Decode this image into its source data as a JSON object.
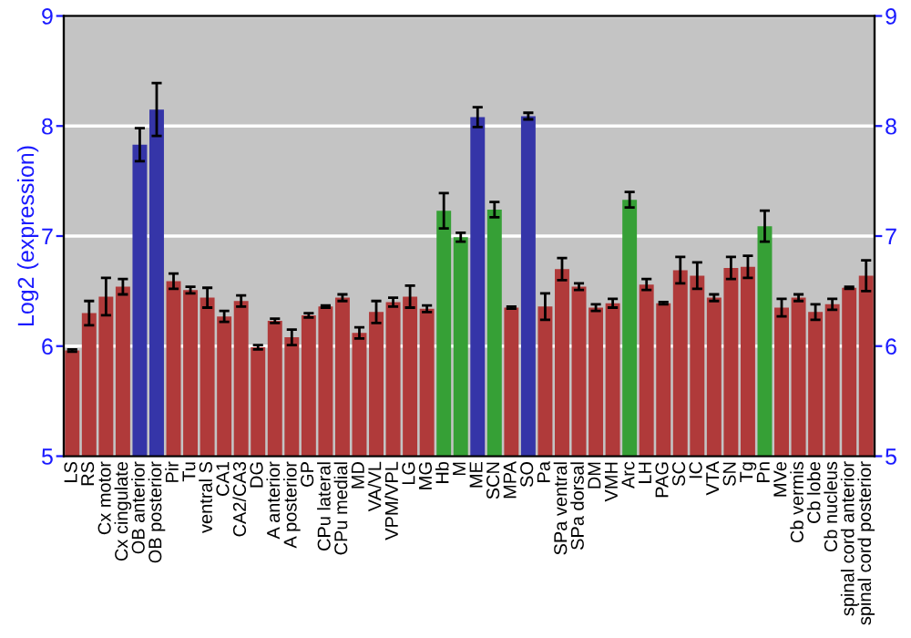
{
  "chart_data": {
    "type": "bar",
    "ylabel": "Log2 (expression)",
    "categories": [
      "LS",
      "RS",
      "Cx motor",
      "Cx cingulate",
      "OB anterior",
      "OB posterior",
      "Pir",
      "Tu",
      "ventral S",
      "CA1",
      "CA2/CA3",
      "DG",
      "A anterior",
      "A posterior",
      "GP",
      "CPu lateral",
      "CPu medial",
      "MD",
      "VA/VL",
      "VPM/VPL",
      "LG",
      "MG",
      "Hb",
      "M",
      "ME",
      "SCN",
      "MPA",
      "SO",
      "Pa",
      "SPa ventral",
      "SPa dorsal",
      "DM",
      "VMH",
      "Arc",
      "LH",
      "PAG",
      "SC",
      "IC",
      "VTA",
      "SN",
      "Tg",
      "Pn",
      "MVe",
      "Cb vermis",
      "Cb lobe",
      "Cb nucleus",
      "spinal cord anterior",
      "spinal cord posterior"
    ],
    "values": [
      5.96,
      6.3,
      6.45,
      6.54,
      7.83,
      8.15,
      6.59,
      6.51,
      6.44,
      6.27,
      6.41,
      5.99,
      6.23,
      6.08,
      6.28,
      6.36,
      6.44,
      6.12,
      6.31,
      6.4,
      6.45,
      6.34,
      7.23,
      6.99,
      8.08,
      7.24,
      6.35,
      8.09,
      6.36,
      6.7,
      6.54,
      6.35,
      6.39,
      7.33,
      6.56,
      6.39,
      6.69,
      6.64,
      6.44,
      6.71,
      6.72,
      7.09,
      6.35,
      6.44,
      6.31,
      6.38,
      6.53,
      6.64
    ],
    "errors": [
      0.01,
      0.11,
      0.17,
      0.07,
      0.15,
      0.24,
      0.07,
      0.03,
      0.09,
      0.05,
      0.05,
      0.02,
      0.02,
      0.07,
      0.02,
      0.01,
      0.03,
      0.05,
      0.1,
      0.04,
      0.1,
      0.03,
      0.16,
      0.04,
      0.09,
      0.07,
      0.01,
      0.03,
      0.12,
      0.1,
      0.03,
      0.03,
      0.04,
      0.07,
      0.05,
      0.01,
      0.12,
      0.12,
      0.03,
      0.1,
      0.1,
      0.14,
      0.08,
      0.03,
      0.07,
      0.05,
      0.01,
      0.14
    ],
    "colors": [
      "#b03a3a",
      "#b03a3a",
      "#b03a3a",
      "#b03a3a",
      "#3535a8",
      "#3535a8",
      "#b03a3a",
      "#b03a3a",
      "#b03a3a",
      "#b03a3a",
      "#b03a3a",
      "#b03a3a",
      "#b03a3a",
      "#b03a3a",
      "#b03a3a",
      "#b03a3a",
      "#b03a3a",
      "#b03a3a",
      "#b03a3a",
      "#b03a3a",
      "#b03a3a",
      "#b03a3a",
      "#36a036",
      "#36a036",
      "#3535a8",
      "#36a036",
      "#b03a3a",
      "#3535a8",
      "#b03a3a",
      "#b03a3a",
      "#b03a3a",
      "#b03a3a",
      "#b03a3a",
      "#36a036",
      "#b03a3a",
      "#b03a3a",
      "#b03a3a",
      "#b03a3a",
      "#b03a3a",
      "#b03a3a",
      "#b03a3a",
      "#36a036",
      "#b03a3a",
      "#b03a3a",
      "#b03a3a",
      "#b03a3a",
      "#b03a3a",
      "#b03a3a"
    ],
    "ylim": [
      5,
      9
    ],
    "yticks": [
      5,
      6,
      7,
      8,
      9
    ],
    "y2lim": [
      5,
      9
    ],
    "y2ticks": [
      5,
      6,
      7,
      8,
      9
    ],
    "grid": "y"
  }
}
